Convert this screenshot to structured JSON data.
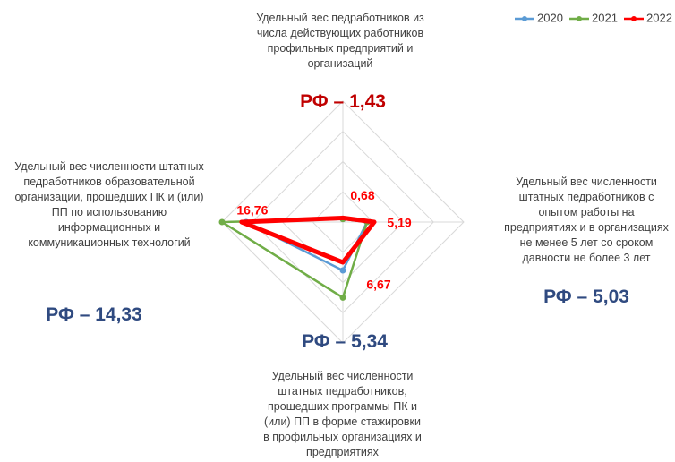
{
  "chart_data": {
    "type": "radar",
    "categories": [
      "Удельный вес педработников из числа действующих работников профильных предприятий и организаций",
      "Удельный вес численности штатных педработников с опытом работы на предприятиях и в организациях не менее 5 лет со сроком давности не более 3 лет",
      "Удельный вес численности штатных педработников, прошедших программы ПК и (или) ПП в форме стажировки в профильных организациях и предприятиях",
      "Удельный вес численности штатных педработников образовательной организации, прошедших ПК и (или) ПП по использованию информационных и коммуникационных технологий"
    ],
    "annotations": [
      "РФ – 1,43",
      "РФ – 5,03",
      "РФ – 5,34",
      "РФ – 14,33"
    ],
    "annotation_colors": [
      "#c00000",
      "#2f4a80",
      "#2f4a80",
      "#2f4a80"
    ],
    "series": [
      {
        "name": "2020",
        "color": "#5b9bd5",
        "values": [
          0.5,
          4,
          8,
          16
        ]
      },
      {
        "name": "2021",
        "color": "#70ad47",
        "values": [
          0.5,
          4,
          12.5,
          20
        ]
      },
      {
        "name": "2022",
        "color": "#ff0000",
        "values": [
          0.68,
          5.19,
          6.67,
          16.76
        ],
        "value_labels": [
          "0,68",
          "5,19",
          "6,67",
          "16,76"
        ]
      }
    ],
    "ylim": [
      0,
      20
    ],
    "yticks": [
      0,
      5,
      10,
      15,
      20
    ],
    "grid": true,
    "legend": "top-right"
  }
}
